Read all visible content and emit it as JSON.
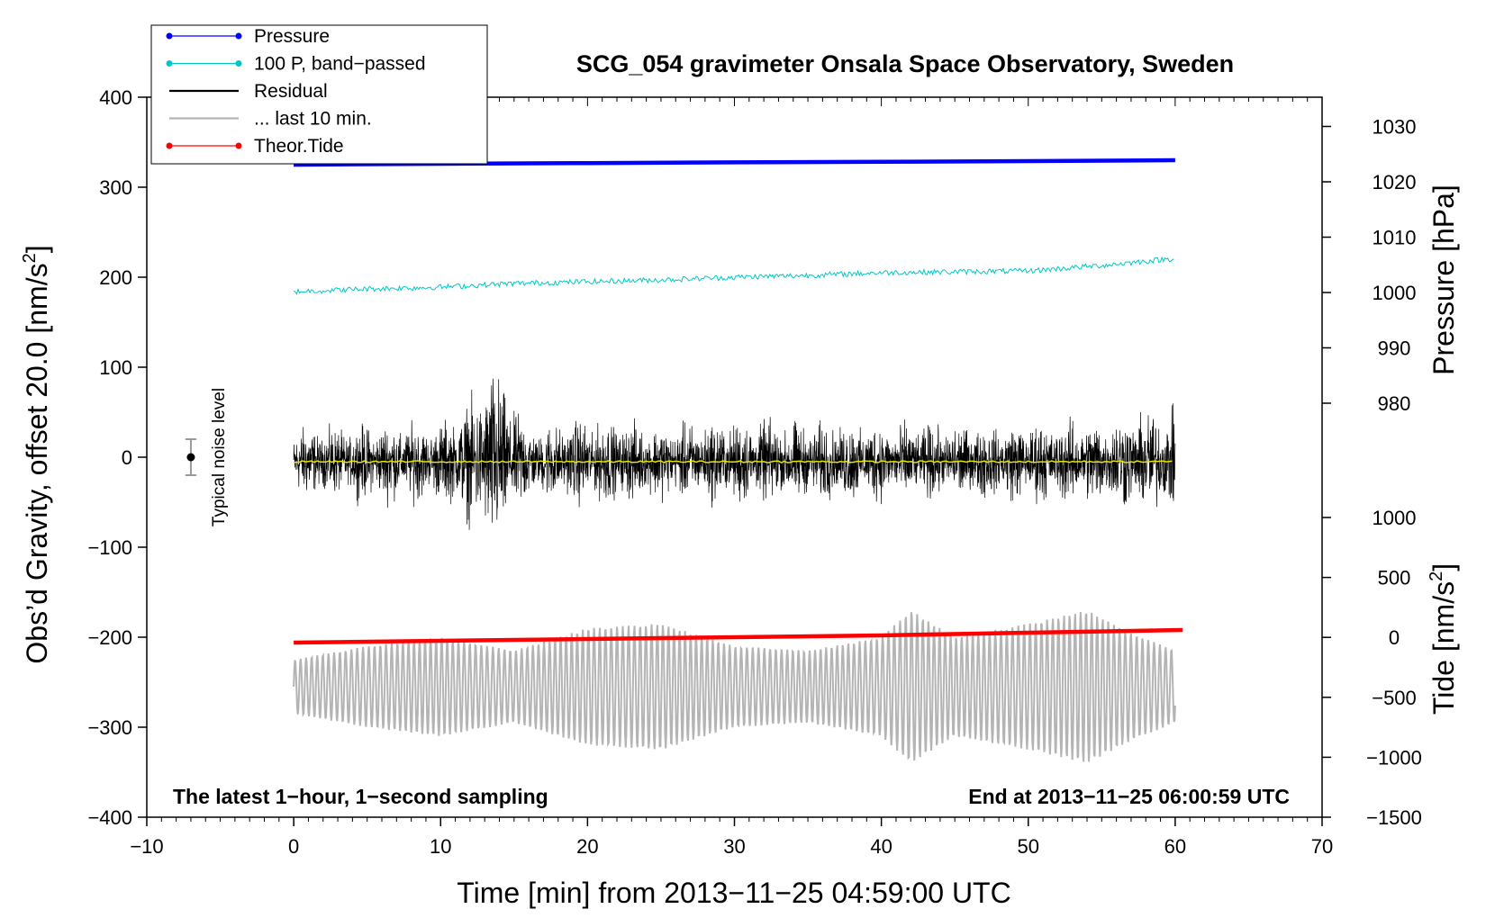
{
  "chart_data": {
    "type": "line",
    "title": "SCG_054 gravimeter Onsala Space Observatory, Sweden",
    "xlabel": "Time [min] from 2013−11−25 04:59:00 UTC",
    "ylabel_left_main": "Obs’d Gravity, offset 20.0 [nm/s",
    "ylabel_left_sup": "2",
    "ylabel_left_end": "]",
    "ylabel_right_top": "Pressure [hPa]",
    "ylabel_right_bottom_main": "Tide [nm/s",
    "ylabel_right_bottom_sup": "2",
    "ylabel_right_bottom_end": "]",
    "xlim": [
      -10,
      70
    ],
    "ylim": [
      -400,
      400
    ],
    "xticks": [
      -10,
      0,
      10,
      20,
      30,
      40,
      50,
      60,
      70
    ],
    "xtick_labels": [
      "−10",
      "0",
      "10",
      "20",
      "30",
      "40",
      "50",
      "60",
      "70"
    ],
    "yticks": [
      -400,
      -300,
      -200,
      -100,
      0,
      100,
      200,
      300,
      400
    ],
    "ytick_labels": [
      "−400",
      "−300",
      "−200",
      "−100",
      "0",
      "100",
      "200",
      "300",
      "400"
    ],
    "pressure_axis": {
      "ticks": [
        980,
        990,
        1000,
        1010,
        1020,
        1030
      ],
      "tick_labels": [
        "980",
        "990",
        "1000",
        "1010",
        "1020",
        "1030"
      ],
      "map": {
        "v1": 1000,
        "g1": 183,
        "v2": 1020,
        "g2": 306
      }
    },
    "tide_axis": {
      "ticks": [
        -1500,
        -1000,
        -500,
        0,
        500,
        1000
      ],
      "tick_labels": [
        "−1500",
        "−1000",
        "−500",
        "0",
        "500",
        "1000"
      ],
      "map": {
        "v1": -1500,
        "g1": -400,
        "v2": 1000,
        "g2": -67
      }
    },
    "legend": {
      "placement": "top-left",
      "entries": [
        {
          "label": "Pressure",
          "color": "#0000ff",
          "marker": true
        },
        {
          "label": "100 P, band−passed",
          "color": "#00c8c8",
          "marker": true
        },
        {
          "label": "Residual",
          "color": "#000000",
          "marker": false
        },
        {
          "label": "... last 10 min.",
          "color": "#b4b4b4",
          "marker": false
        },
        {
          "label": "Theor.Tide",
          "color": "#ff0000",
          "marker": true
        }
      ]
    },
    "series": [
      {
        "name": "Pressure",
        "color": "#0000ff",
        "x": [
          0,
          10,
          20,
          30,
          40,
          50,
          60
        ],
        "y": [
          325.0,
          326.0,
          326.8,
          327.6,
          328.2,
          329.0,
          330.0
        ]
      },
      {
        "name": "100 P, band−passed",
        "color": "#00c8c8",
        "x": [
          0,
          5,
          10,
          15,
          20,
          25,
          30,
          35,
          40,
          45,
          50,
          55,
          60
        ],
        "y": [
          184,
          187,
          189,
          193,
          195,
          197,
          200,
          202,
          205,
          206,
          207,
          213,
          221
        ],
        "noise_amplitude": 3
      },
      {
        "name": "Residual",
        "color": "#000000",
        "x": [
          0,
          60
        ],
        "y": [
          -5,
          -5
        ],
        "envelope": {
          "x": [
            0,
            3,
            6,
            10,
            12.5,
            13.2,
            16,
            20,
            25,
            30,
            35,
            40,
            45,
            50,
            55,
            58,
            60
          ],
          "amplitude": [
            55,
            50,
            60,
            58,
            100,
            155,
            55,
            65,
            55,
            65,
            60,
            60,
            55,
            60,
            65,
            80,
            75
          ]
        }
      },
      {
        "name": "... last 10 min.",
        "color": "#b4b4b4",
        "x": [
          0,
          60
        ],
        "y": [
          -255,
          -255
        ],
        "oscillation": {
          "cycles_per_min": 2.6,
          "envelope_x": [
            0,
            5,
            10,
            15,
            20,
            25,
            30,
            35,
            40,
            42,
            45,
            50,
            54,
            57,
            60
          ],
          "amplitude": [
            30,
            45,
            55,
            40,
            65,
            70,
            45,
            40,
            55,
            85,
            55,
            70,
            85,
            60,
            40
          ]
        }
      },
      {
        "name": "Theor.Tide",
        "color": "#ff0000",
        "x": [
          0,
          10,
          20,
          30,
          40,
          50,
          60.5
        ],
        "y": [
          -206,
          -204,
          -202,
          -200,
          -198,
          -195,
          -192
        ]
      },
      {
        "name": "Residual smoothed",
        "color": "#e6e600",
        "x": [
          0,
          60
        ],
        "y": [
          -5,
          -5
        ]
      }
    ],
    "noise_marker": {
      "label": "Typical noise level",
      "x": -7,
      "y": 0,
      "err": 20
    },
    "annotations": [
      {
        "text": "The latest 1−hour, 1−second sampling",
        "position": "bottom-left"
      },
      {
        "text": "End at 2013−11−25 06:00:59 UTC",
        "position": "bottom-right"
      }
    ],
    "grid": false
  }
}
